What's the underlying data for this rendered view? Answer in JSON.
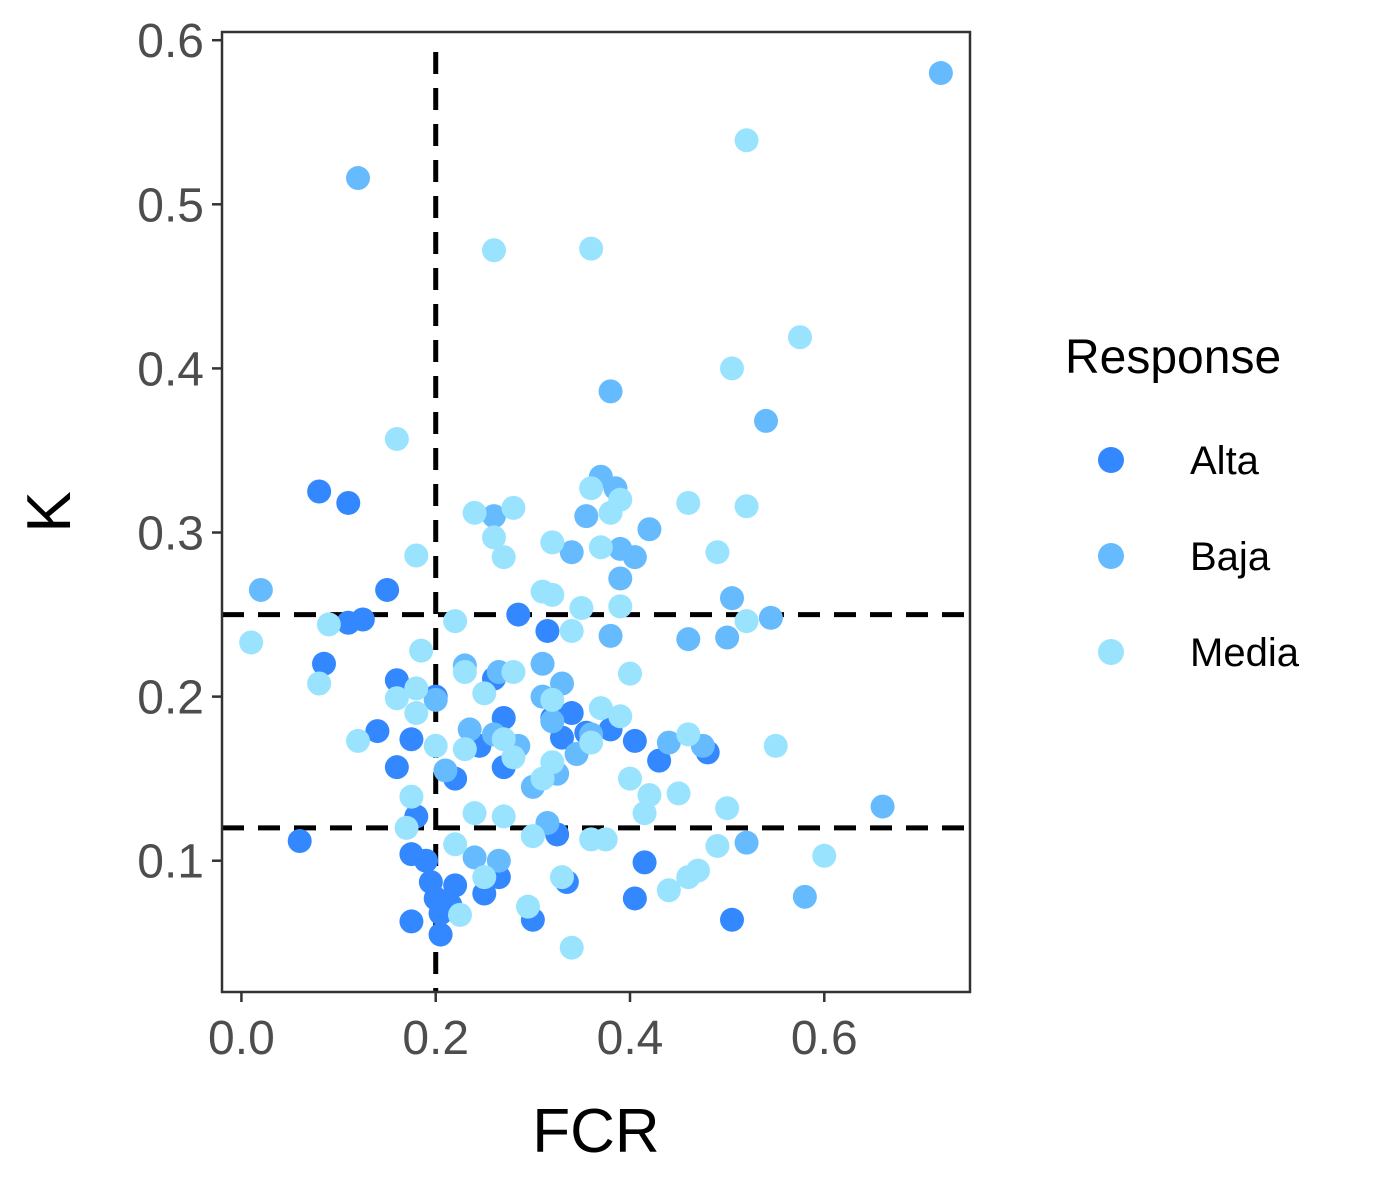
{
  "chart_data": {
    "type": "scatter",
    "xlabel": "FCR",
    "ylabel": "K",
    "xlim": [
      -0.02,
      0.75
    ],
    "ylim": [
      0.02,
      0.605
    ],
    "x_ticks": [
      0.0,
      0.2,
      0.4,
      0.6
    ],
    "x_tick_labels": [
      "0.0",
      "0.2",
      "0.4",
      "0.6"
    ],
    "y_ticks": [
      0.1,
      0.2,
      0.3,
      0.4,
      0.5,
      0.6
    ],
    "y_tick_labels": [
      "0.1",
      "0.2",
      "0.3",
      "0.4",
      "0.5",
      "0.6"
    ],
    "grid": false,
    "legend": {
      "title": "Response",
      "position": "right"
    },
    "reference_lines": {
      "vertical_x": [
        0.2
      ],
      "horizontal_y": [
        0.25,
        0.12
      ],
      "style": "dashed",
      "color": "#000000"
    },
    "series": [
      {
        "name": "Alta",
        "color": "#3388ff",
        "points": [
          [
            0.08,
            0.325
          ],
          [
            0.11,
            0.318
          ],
          [
            0.15,
            0.265
          ],
          [
            0.125,
            0.247
          ],
          [
            0.11,
            0.245
          ],
          [
            0.085,
            0.22
          ],
          [
            0.16,
            0.21
          ],
          [
            0.2,
            0.2
          ],
          [
            0.14,
            0.179
          ],
          [
            0.175,
            0.174
          ],
          [
            0.16,
            0.157
          ],
          [
            0.22,
            0.15
          ],
          [
            0.06,
            0.112
          ],
          [
            0.18,
            0.127
          ],
          [
            0.175,
            0.104
          ],
          [
            0.19,
            0.1
          ],
          [
            0.195,
            0.087
          ],
          [
            0.2,
            0.077
          ],
          [
            0.22,
            0.085
          ],
          [
            0.205,
            0.068
          ],
          [
            0.215,
            0.073
          ],
          [
            0.175,
            0.063
          ],
          [
            0.205,
            0.055
          ],
          [
            0.25,
            0.08
          ],
          [
            0.265,
            0.09
          ],
          [
            0.26,
            0.211
          ],
          [
            0.27,
            0.187
          ],
          [
            0.245,
            0.17
          ],
          [
            0.27,
            0.157
          ],
          [
            0.285,
            0.25
          ],
          [
            0.315,
            0.24
          ],
          [
            0.32,
            0.187
          ],
          [
            0.33,
            0.175
          ],
          [
            0.34,
            0.19
          ],
          [
            0.355,
            0.178
          ],
          [
            0.38,
            0.18
          ],
          [
            0.405,
            0.173
          ],
          [
            0.43,
            0.161
          ],
          [
            0.48,
            0.166
          ],
          [
            0.325,
            0.116
          ],
          [
            0.335,
            0.087
          ],
          [
            0.3,
            0.064
          ],
          [
            0.405,
            0.077
          ],
          [
            0.415,
            0.099
          ],
          [
            0.505,
            0.064
          ]
        ]
      },
      {
        "name": "Baja",
        "color": "#66bbff",
        "points": [
          [
            0.12,
            0.516
          ],
          [
            0.02,
            0.265
          ],
          [
            0.38,
            0.386
          ],
          [
            0.54,
            0.368
          ],
          [
            0.37,
            0.334
          ],
          [
            0.385,
            0.327
          ],
          [
            0.355,
            0.31
          ],
          [
            0.26,
            0.31
          ],
          [
            0.42,
            0.302
          ],
          [
            0.34,
            0.288
          ],
          [
            0.39,
            0.29
          ],
          [
            0.405,
            0.285
          ],
          [
            0.39,
            0.272
          ],
          [
            0.505,
            0.26
          ],
          [
            0.545,
            0.248
          ],
          [
            0.38,
            0.237
          ],
          [
            0.46,
            0.235
          ],
          [
            0.5,
            0.236
          ],
          [
            0.31,
            0.22
          ],
          [
            0.23,
            0.219
          ],
          [
            0.265,
            0.215
          ],
          [
            0.33,
            0.208
          ],
          [
            0.31,
            0.2
          ],
          [
            0.2,
            0.198
          ],
          [
            0.235,
            0.18
          ],
          [
            0.26,
            0.177
          ],
          [
            0.285,
            0.17
          ],
          [
            0.32,
            0.185
          ],
          [
            0.345,
            0.165
          ],
          [
            0.36,
            0.177
          ],
          [
            0.44,
            0.172
          ],
          [
            0.475,
            0.17
          ],
          [
            0.325,
            0.153
          ],
          [
            0.3,
            0.145
          ],
          [
            0.21,
            0.155
          ],
          [
            0.315,
            0.123
          ],
          [
            0.24,
            0.102
          ],
          [
            0.265,
            0.1
          ],
          [
            0.66,
            0.133
          ],
          [
            0.52,
            0.111
          ],
          [
            0.58,
            0.078
          ],
          [
            0.72,
            0.58
          ]
        ]
      },
      {
        "name": "Media",
        "color": "#99e3ff",
        "points": [
          [
            0.52,
            0.539
          ],
          [
            0.26,
            0.472
          ],
          [
            0.36,
            0.473
          ],
          [
            0.575,
            0.419
          ],
          [
            0.505,
            0.4
          ],
          [
            0.16,
            0.357
          ],
          [
            0.36,
            0.327
          ],
          [
            0.39,
            0.32
          ],
          [
            0.46,
            0.318
          ],
          [
            0.52,
            0.316
          ],
          [
            0.28,
            0.315
          ],
          [
            0.24,
            0.312
          ],
          [
            0.38,
            0.312
          ],
          [
            0.26,
            0.297
          ],
          [
            0.32,
            0.294
          ],
          [
            0.37,
            0.291
          ],
          [
            0.49,
            0.288
          ],
          [
            0.18,
            0.286
          ],
          [
            0.27,
            0.285
          ],
          [
            0.31,
            0.264
          ],
          [
            0.32,
            0.262
          ],
          [
            0.35,
            0.254
          ],
          [
            0.39,
            0.255
          ],
          [
            0.52,
            0.246
          ],
          [
            0.09,
            0.244
          ],
          [
            0.22,
            0.246
          ],
          [
            0.34,
            0.24
          ],
          [
            0.01,
            0.233
          ],
          [
            0.185,
            0.228
          ],
          [
            0.23,
            0.215
          ],
          [
            0.28,
            0.215
          ],
          [
            0.4,
            0.214
          ],
          [
            0.08,
            0.208
          ],
          [
            0.18,
            0.205
          ],
          [
            0.25,
            0.202
          ],
          [
            0.16,
            0.199
          ],
          [
            0.18,
            0.19
          ],
          [
            0.32,
            0.198
          ],
          [
            0.37,
            0.193
          ],
          [
            0.39,
            0.188
          ],
          [
            0.12,
            0.173
          ],
          [
            0.27,
            0.174
          ],
          [
            0.36,
            0.172
          ],
          [
            0.46,
            0.177
          ],
          [
            0.55,
            0.17
          ],
          [
            0.2,
            0.17
          ],
          [
            0.23,
            0.168
          ],
          [
            0.28,
            0.163
          ],
          [
            0.32,
            0.16
          ],
          [
            0.31,
            0.15
          ],
          [
            0.4,
            0.15
          ],
          [
            0.42,
            0.14
          ],
          [
            0.45,
            0.141
          ],
          [
            0.175,
            0.139
          ],
          [
            0.24,
            0.129
          ],
          [
            0.27,
            0.127
          ],
          [
            0.415,
            0.129
          ],
          [
            0.5,
            0.132
          ],
          [
            0.17,
            0.12
          ],
          [
            0.3,
            0.115
          ],
          [
            0.36,
            0.113
          ],
          [
            0.375,
            0.113
          ],
          [
            0.22,
            0.11
          ],
          [
            0.49,
            0.109
          ],
          [
            0.6,
            0.103
          ],
          [
            0.25,
            0.09
          ],
          [
            0.33,
            0.09
          ],
          [
            0.46,
            0.09
          ],
          [
            0.47,
            0.094
          ],
          [
            0.44,
            0.082
          ],
          [
            0.295,
            0.072
          ],
          [
            0.225,
            0.067
          ],
          [
            0.34,
            0.047
          ]
        ]
      }
    ]
  }
}
